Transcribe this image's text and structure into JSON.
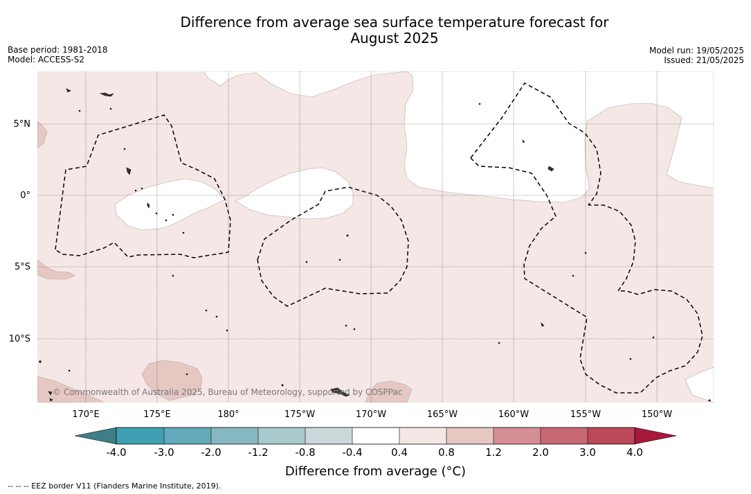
{
  "header": {
    "title_line1": "Difference from average sea surface temperature forecast for",
    "title_line2": "August 2025",
    "base_period": "Base period: 1981-2018",
    "model": "Model: ACCESS-S2",
    "model_run": "Model run: 19/05/2025",
    "issued": "Issued: 21/05/2025"
  },
  "map": {
    "lat_labels": [
      "5°N",
      "0°",
      "5°S",
      "10°S"
    ],
    "lon_labels": [
      "170°E",
      "175°E",
      "180°",
      "175°W",
      "170°W",
      "165°W",
      "160°W",
      "155°W",
      "150°W"
    ],
    "copyright": "© Commonwealth of Australia 2025, Bureau of Meteorology, supported by COSPPac",
    "colors": {
      "land": "#333333",
      "anomaly_0_4_to_0_8": "#f4e7e6",
      "anomaly_0_8_to_1_2": "#e6c7c2",
      "grid": "#555555",
      "eez_border": "#000000"
    }
  },
  "colorbar": {
    "label": "Difference from average (°C)",
    "ticks": [
      "-4.0",
      "-3.0",
      "-2.0",
      "-1.2",
      "-0.8",
      "-0.4",
      "0.4",
      "0.8",
      "1.2",
      "2.0",
      "3.0",
      "4.0"
    ],
    "colors": [
      "#40a0b2",
      "#63aaba",
      "#87b8c2",
      "#a9c9cc",
      "#ccd8da",
      "#ffffff",
      "#f4e7e6",
      "#e6c7c2",
      "#d48f95",
      "#c76872",
      "#bb4957"
    ],
    "under_color": "#3e7e86",
    "over_color": "#a8183d"
  },
  "footnote": "-- -- -- EEZ border V11 (Flanders Marine Institute, 2019)."
}
